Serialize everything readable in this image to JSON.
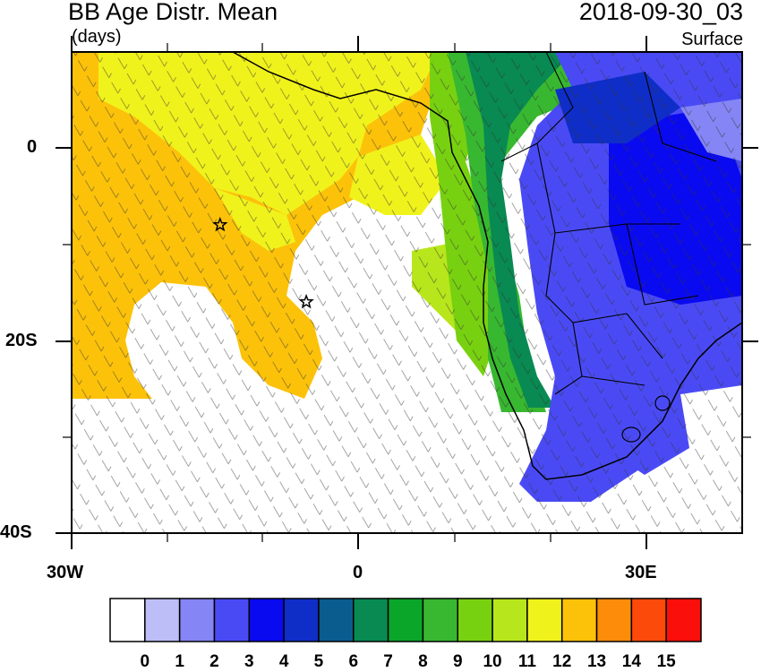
{
  "header": {
    "title": "BB Age Distr. Mean",
    "units": "(days)",
    "time": "2018-09-30_03",
    "level": "Surface"
  },
  "axes": {
    "lat_labels": [
      "0",
      "20S",
      "40S"
    ],
    "lon_labels": [
      "30W",
      "0",
      "30E"
    ]
  },
  "colorbar": {
    "labels": [
      "0",
      "1",
      "2",
      "3",
      "4",
      "5",
      "6",
      "7",
      "8",
      "9",
      "10",
      "11",
      "12",
      "13",
      "14",
      "15"
    ],
    "colors": [
      "#ffffff",
      "#bdbdf7",
      "#8585f5",
      "#4a4af5",
      "#0a0af0",
      "#0f2ec7",
      "#0a5c8f",
      "#088a52",
      "#0aa629",
      "#38b830",
      "#78d110",
      "#b8e61c",
      "#f0f21c",
      "#fcc20a",
      "#fc8c0a",
      "#fc4a0a",
      "#fa0f0a"
    ]
  },
  "stars": [
    {
      "lat": -8,
      "lon": -14.5
    },
    {
      "lat": -16,
      "lon": -5.5
    }
  ]
}
